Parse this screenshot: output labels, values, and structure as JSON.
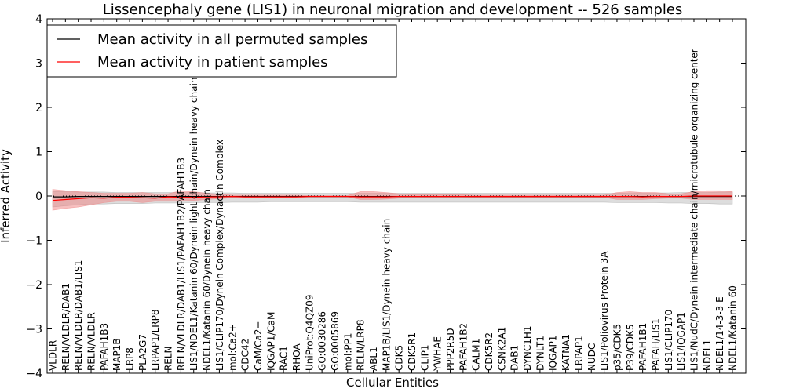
{
  "chart_data": {
    "type": "line",
    "title": "Lissencephaly gene (LIS1) in neuronal migration and development -- 526 samples",
    "xlabel": "Cellular Entities",
    "ylabel": "Inferred Activity",
    "ylim": [
      -4,
      4
    ],
    "yticks": [
      "−4",
      "−3",
      "−2",
      "−1",
      "0",
      "1",
      "2",
      "3",
      "4"
    ],
    "legend_position": "top-left",
    "categories": [
      "VLDLR",
      "RELN/VLDLR/DAB1",
      "RELN/VLDLR/DAB1/LIS1",
      "RELN/VLDLR",
      "PAFAH1B3",
      "MAP1B",
      "LRP8",
      "PLA2G7",
      "LRPAP1/LRP8",
      "RELN",
      "RELN/VLDLR/DAB1/LIS1/PAFAH1B2/PAFAH1B3",
      "LIS1/NDEL1/Katanin 60/Dynein light chain/Dynein heavy chain",
      "NDEL1/Katanin 60/Dynein heavy chain",
      "LIS1/CLIP170/Dynein Complex/Dynactin Complex",
      "mol:Ca2+",
      "CDC42",
      "CaM/Ca2+",
      "IQGAP1/CaM",
      "RAC1",
      "RHOA",
      "UniProt:Q4QZ09",
      "GO:0030286",
      "GO:0005869",
      "mol:PP1",
      "RELN/LRP8",
      "ABL1",
      "MAP1B/LIS1/Dynein heavy chain",
      "CDK5",
      "CDK5R1",
      "CLIP1",
      "YWHAE",
      "PPP2R5D",
      "PAFAH1B2",
      "CALM1",
      "CDK5R2",
      "CSNK2A1",
      "DAB1",
      "DYNC1H1",
      "DYNLT1",
      "IQGAP1",
      "KATNA1",
      "LRPAP1",
      "NUDC",
      "LIS1/Poliovirus Protein 3A",
      "p35/CDK5",
      "P39/CDK5",
      "PAFAH1B1",
      "PAFAH/LIS1",
      "LIS1/CLIP170",
      "LIS1/IQGAP1",
      "LIS1/NudC/Dynein intermediate chain/microtubule organizing center",
      "NDEL1",
      "NDEL1/14-3-3 E",
      "NDEL1/Katanin 60"
    ],
    "series": [
      {
        "name": "Mean activity in all permuted samples",
        "color": "#000000",
        "values": [
          -0.02,
          -0.02,
          -0.01,
          -0.01,
          -0.01,
          -0.01,
          -0.01,
          -0.01,
          -0.01,
          -0.01,
          -0.01,
          -0.01,
          -0.01,
          -0.01,
          -0.01,
          -0.01,
          -0.01,
          -0.01,
          -0.01,
          -0.01,
          -0.01,
          -0.01,
          -0.01,
          -0.01,
          -0.01,
          -0.01,
          -0.01,
          -0.01,
          -0.01,
          -0.01,
          -0.01,
          -0.01,
          -0.01,
          -0.01,
          -0.01,
          -0.01,
          -0.01,
          -0.01,
          -0.01,
          -0.01,
          -0.01,
          -0.01,
          -0.01,
          -0.01,
          -0.01,
          -0.01,
          -0.01,
          -0.01,
          -0.01,
          -0.01,
          -0.01,
          -0.01,
          -0.01,
          -0.01
        ],
        "band": {
          "lower": [
            -0.25,
            -0.22,
            -0.2,
            -0.18,
            -0.18,
            -0.17,
            -0.17,
            -0.17,
            -0.16,
            -0.16,
            -0.16,
            -0.15,
            -0.15,
            -0.15,
            -0.14,
            -0.14,
            -0.14,
            -0.13,
            -0.13,
            -0.13,
            -0.13,
            -0.13,
            -0.13,
            -0.13,
            -0.14,
            -0.14,
            -0.14,
            -0.14,
            -0.14,
            -0.14,
            -0.14,
            -0.14,
            -0.14,
            -0.14,
            -0.14,
            -0.14,
            -0.14,
            -0.14,
            -0.14,
            -0.14,
            -0.14,
            -0.14,
            -0.14,
            -0.14,
            -0.15,
            -0.15,
            -0.15,
            -0.15,
            -0.16,
            -0.16,
            -0.17,
            -0.17,
            -0.18,
            -0.18
          ],
          "upper": [
            0.1,
            0.1,
            0.09,
            0.09,
            0.09,
            0.08,
            0.08,
            0.08,
            0.08,
            0.08,
            0.08,
            0.08,
            0.07,
            0.07,
            0.07,
            0.06,
            0.06,
            0.06,
            0.06,
            0.06,
            0.06,
            0.06,
            0.06,
            0.06,
            0.06,
            0.06,
            0.06,
            0.06,
            0.06,
            0.06,
            0.06,
            0.06,
            0.06,
            0.06,
            0.06,
            0.06,
            0.06,
            0.06,
            0.06,
            0.06,
            0.06,
            0.06,
            0.06,
            0.06,
            0.06,
            0.07,
            0.07,
            0.07,
            0.07,
            0.08,
            0.08,
            0.08,
            0.09,
            0.09
          ],
          "color": "#9e9e9e"
        }
      },
      {
        "name": "Mean activity in patient samples",
        "color": "#ff0000",
        "values": [
          -0.1,
          -0.08,
          -0.06,
          -0.04,
          -0.05,
          -0.03,
          -0.03,
          -0.04,
          -0.05,
          -0.02,
          -0.03,
          -0.03,
          -0.02,
          -0.02,
          -0.01,
          -0.02,
          -0.02,
          -0.02,
          -0.02,
          -0.02,
          -0.01,
          -0.01,
          -0.01,
          -0.01,
          -0.02,
          -0.02,
          -0.02,
          -0.01,
          -0.01,
          -0.01,
          -0.01,
          -0.01,
          -0.01,
          -0.01,
          -0.01,
          -0.01,
          -0.01,
          -0.01,
          -0.01,
          -0.01,
          -0.01,
          -0.01,
          -0.01,
          -0.01,
          -0.01,
          -0.01,
          -0.02,
          -0.01,
          -0.01,
          -0.01,
          0.0,
          0.0,
          0.0,
          0.0
        ],
        "band": {
          "lower": [
            -0.32,
            -0.28,
            -0.25,
            -0.2,
            -0.15,
            -0.12,
            -0.12,
            -0.15,
            -0.12,
            -0.12,
            -0.12,
            -0.1,
            -0.08,
            -0.06,
            -0.04,
            -0.04,
            -0.04,
            -0.04,
            -0.04,
            -0.04,
            -0.02,
            -0.02,
            -0.02,
            -0.02,
            -0.08,
            -0.08,
            -0.07,
            -0.05,
            -0.04,
            -0.04,
            -0.04,
            -0.04,
            -0.04,
            -0.03,
            -0.03,
            -0.03,
            -0.03,
            -0.03,
            -0.03,
            -0.03,
            -0.03,
            -0.03,
            -0.03,
            -0.03,
            -0.08,
            -0.08,
            -0.08,
            -0.06,
            -0.05,
            -0.05,
            -0.08,
            -0.08,
            -0.08,
            -0.08
          ],
          "upper": [
            0.15,
            0.12,
            0.1,
            0.08,
            0.06,
            0.06,
            0.06,
            0.08,
            0.05,
            0.05,
            0.12,
            0.1,
            0.06,
            0.04,
            0.02,
            0.02,
            0.02,
            0.02,
            0.02,
            0.02,
            0.01,
            0.01,
            0.01,
            0.01,
            0.1,
            0.1,
            0.08,
            0.05,
            0.03,
            0.03,
            0.03,
            0.03,
            0.03,
            0.02,
            0.02,
            0.02,
            0.02,
            0.02,
            0.02,
            0.02,
            0.02,
            0.02,
            0.02,
            0.02,
            0.08,
            0.1,
            0.08,
            0.08,
            0.05,
            0.05,
            0.1,
            0.12,
            0.12,
            0.1
          ],
          "color": "#f08080"
        }
      }
    ]
  }
}
